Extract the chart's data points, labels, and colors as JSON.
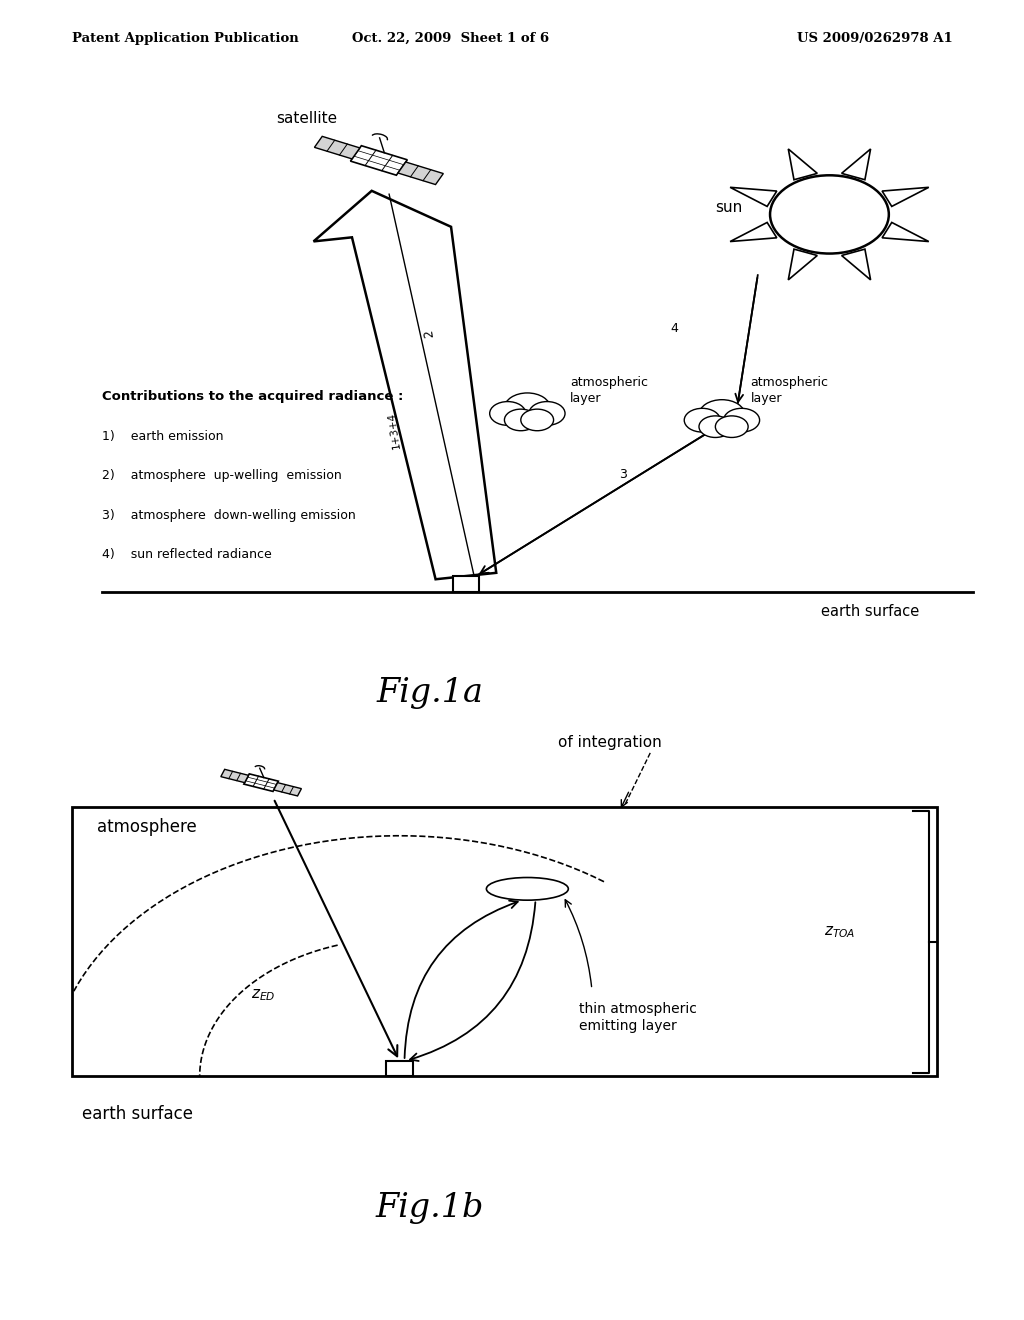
{
  "header_left": "Patent Application Publication",
  "header_mid": "Oct. 22, 2009  Sheet 1 of 6",
  "header_right": "US 2009/0262978 A1",
  "fig1a_label": "Fig.1a",
  "fig1b_label": "Fig.1b",
  "legend_title": "Contributions to the acquired radiance :",
  "legend_items": [
    "1)    earth emission",
    "2)    atmosphere  up-welling  emission",
    "3)    atmosphere  down-welling emission",
    "4)    sun reflected radiance"
  ],
  "bg_color": "#ffffff",
  "line_color": "#000000"
}
